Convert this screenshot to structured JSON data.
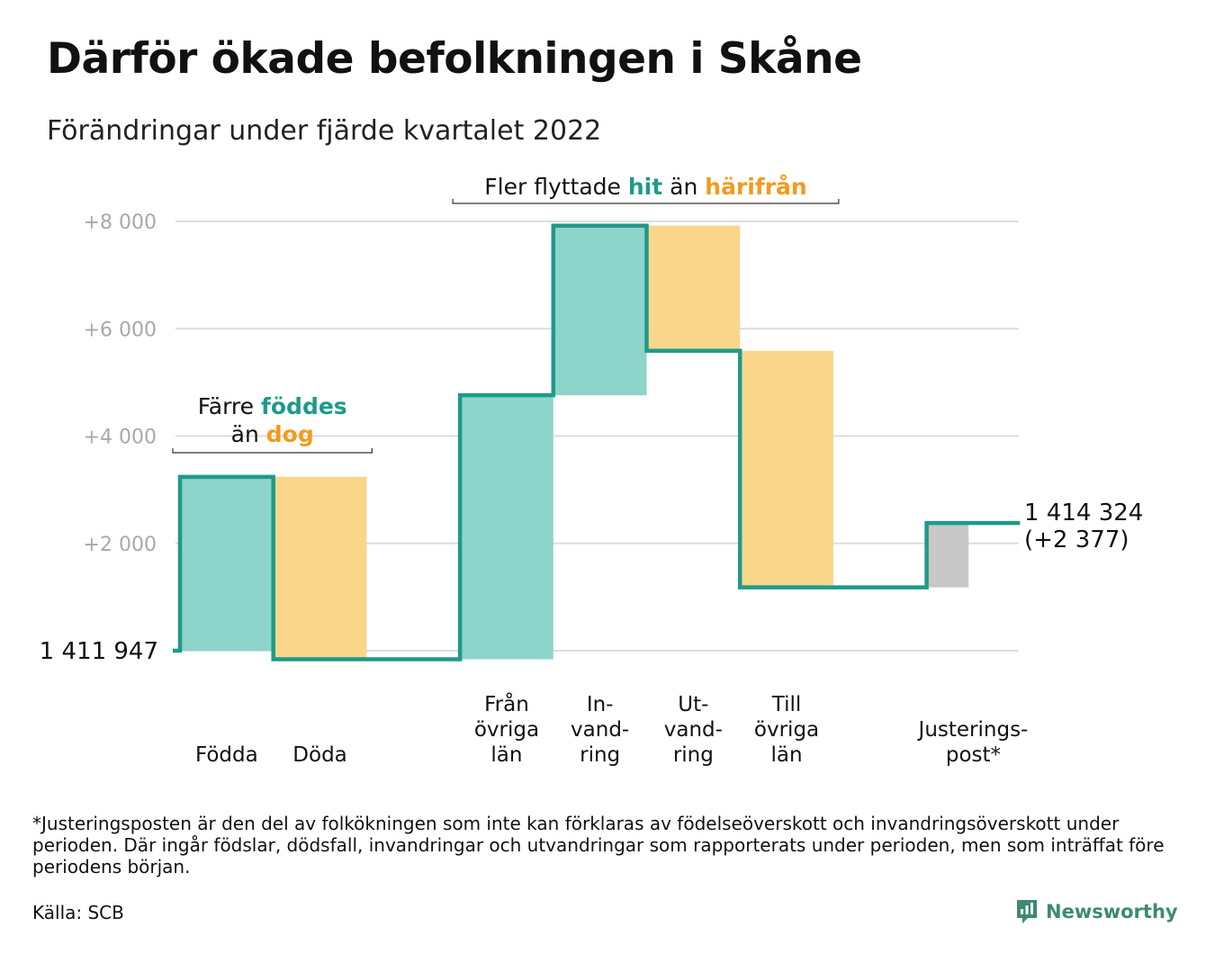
{
  "header": {
    "title": "Därför ökade befolkningen i Skåne",
    "subtitle": "Förändringar under fjärde kvartalet 2022"
  },
  "chart_data": {
    "type": "waterfall",
    "start_value": 1411947,
    "start_label": "1 411 947",
    "end_label_value": "1 414 324",
    "end_label_change": "(+2 377)",
    "ylim": [
      -200,
      8300
    ],
    "yticks": [
      2000,
      4000,
      6000,
      8000
    ],
    "ytick_labels": [
      "+2 000",
      "+4 000",
      "+6 000",
      "+8 000"
    ],
    "grid": true,
    "colors": {
      "increase": "#8dd4cb",
      "decrease": "#fad68b",
      "adjustment": "#c8c8c8",
      "line": "#1f9a8a",
      "axis_text": "#a9a9a9",
      "highlight_green": "#1f9a8a",
      "highlight_orange": "#f29b1d"
    },
    "steps": [
      {
        "label": [
          "Födda"
        ],
        "change": 3240,
        "kind": "increase"
      },
      {
        "label": [
          "Döda"
        ],
        "change": -3400,
        "kind": "decrease"
      },
      {
        "label": [],
        "change": 0,
        "kind": "flat"
      },
      {
        "label": [
          "Från",
          "övriga",
          "län"
        ],
        "change": 4920,
        "kind": "increase"
      },
      {
        "label": [
          "In-",
          "vand-",
          "ring"
        ],
        "change": 3160,
        "kind": "increase"
      },
      {
        "label": [
          "Ut-",
          "vand-",
          "ring"
        ],
        "change": -2330,
        "kind": "decrease"
      },
      {
        "label": [
          "Till",
          "övriga",
          "län"
        ],
        "change": -4410,
        "kind": "decrease"
      },
      {
        "label": [],
        "change": 0,
        "kind": "flat"
      },
      {
        "label": [
          "Justerings-",
          "post*"
        ],
        "change": 1200,
        "kind": "adjustment"
      }
    ],
    "annotations": [
      {
        "lines": [
          [
            {
              "text": "Färre "
            },
            {
              "text": "föddes",
              "color": "highlight_green"
            }
          ],
          [
            {
              "text": "än "
            },
            {
              "text": "dog",
              "color": "highlight_orange"
            }
          ]
        ],
        "spans": [
          0,
          1
        ]
      },
      {
        "lines": [
          [
            {
              "text": "Fler flyttade "
            },
            {
              "text": "hit",
              "color": "highlight_green"
            },
            {
              "text": " än "
            },
            {
              "text": "härifrån",
              "color": "highlight_orange"
            }
          ]
        ],
        "spans": [
          3,
          6
        ]
      }
    ]
  },
  "footer": {
    "footnote": "*Justeringsposten är den del av folkökningen som inte kan förklaras av födelseöverskott och invandringsöverskott under perioden. Där ingår födslar, dödsfall, invandringar och utvandringar som rapporterats under perioden, men som inträffat före periodens början.",
    "source": "Källa: SCB",
    "brand": "Newsworthy",
    "brand_icon": "newsworthy-logo-icon"
  }
}
